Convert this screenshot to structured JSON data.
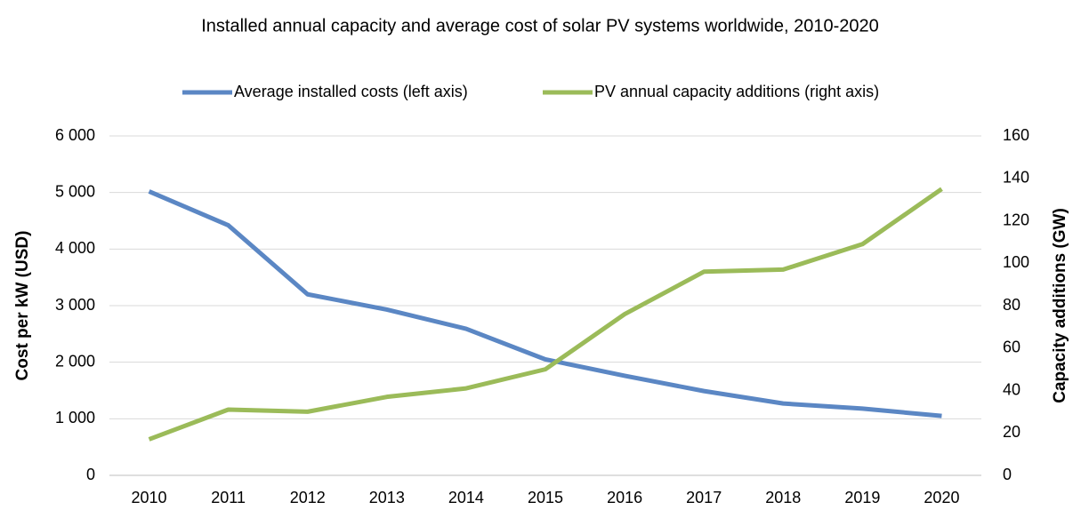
{
  "chart_data": {
    "type": "line",
    "title": "Installed annual capacity and average cost of solar PV systems worldwide, 2010-2020",
    "categories": [
      "2010",
      "2011",
      "2012",
      "2013",
      "2014",
      "2015",
      "2016",
      "2017",
      "2018",
      "2019",
      "2020"
    ],
    "series": [
      {
        "name": "Average installed costs (left axis)",
        "color": "#5b87c4",
        "values": [
          5020,
          4420,
          3200,
          2930,
          2590,
          2050,
          1760,
          1490,
          1270,
          1180,
          1050
        ]
      },
      {
        "name": "PV annual capacity additions (right axis)",
        "color": "#9bbb59",
        "axis": "y2",
        "values": [
          17,
          31,
          30,
          37,
          41,
          50,
          76,
          96,
          97,
          109,
          135
        ]
      }
    ],
    "ylabel": "Cost per kW (USD)",
    "y2label": "Capacity additions (GW)",
    "ylim": [
      0,
      6000
    ],
    "yticks": [
      0,
      {
        "value": 1000,
        "label": "1 000"
      },
      {
        "value": 2000,
        "label": "2 000"
      },
      {
        "value": 3000,
        "label": "3 000"
      },
      {
        "value": 4000,
        "label": "4 000"
      },
      {
        "value": 5000,
        "label": "5 000"
      },
      {
        "value": 6000,
        "label": "6 000"
      }
    ],
    "y2lim": [
      0,
      160
    ],
    "y2ticks": [
      0,
      20,
      40,
      60,
      80,
      100,
      120,
      140,
      160
    ],
    "grid": true,
    "legend": "top"
  }
}
